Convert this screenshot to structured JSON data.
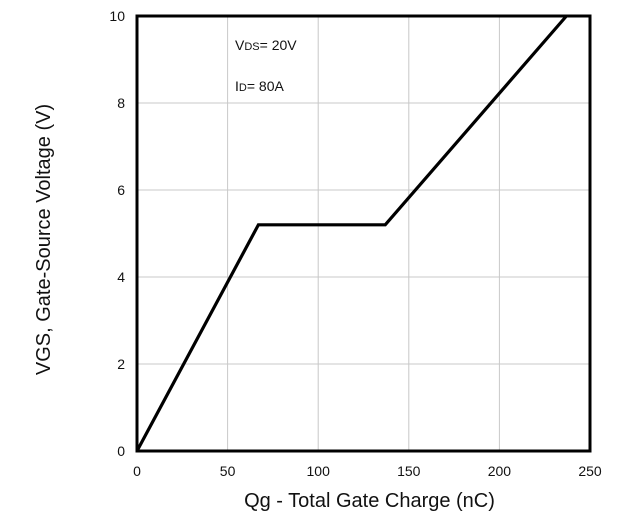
{
  "chart_data": {
    "type": "line",
    "xlabel": "Qg - Total Gate Charge (nC)",
    "ylabel": "VGS, Gate-Source Voltage (V)",
    "xlim": [
      0,
      250
    ],
    "ylim": [
      0,
      10
    ],
    "x_ticks": [
      "0",
      "50",
      "100",
      "150",
      "200",
      "250"
    ],
    "y_ticks": [
      "0",
      "2",
      "4",
      "6",
      "8",
      "10"
    ],
    "grid": true,
    "series": [
      {
        "x": [
          0,
          67,
          137,
          237
        ],
        "y": [
          0,
          5.2,
          5.2,
          10
        ],
        "color": "#000000"
      }
    ],
    "annotations": [
      {
        "main": "V",
        "sub": "DS",
        "rest": "= 20V"
      },
      {
        "main": "I",
        "sub": "D",
        "rest": "= 80A"
      }
    ]
  }
}
